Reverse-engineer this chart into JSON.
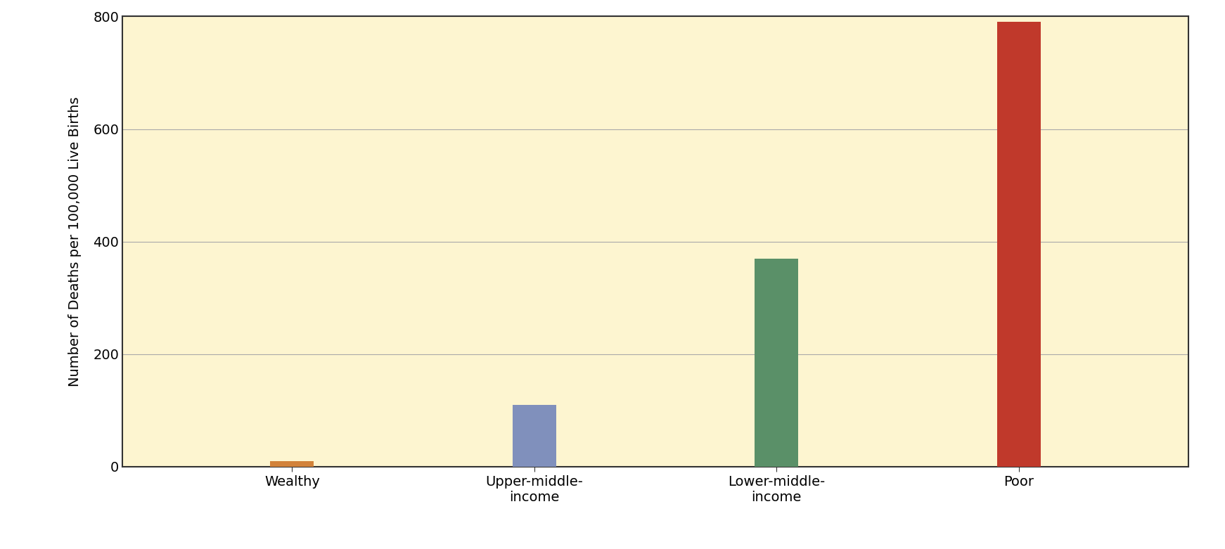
{
  "categories": [
    "Wealthy",
    "Upper-middle-\nincome",
    "Lower-middle-\nincome",
    "Poor"
  ],
  "values": [
    10,
    110,
    370,
    790
  ],
  "bar_colors": [
    "#d2823a",
    "#8090bc",
    "#5a9068",
    "#c0392b"
  ],
  "ylabel": "Number of Deaths per 100,000 Live Births",
  "ylim": [
    0,
    800
  ],
  "yticks": [
    0,
    200,
    400,
    600,
    800
  ],
  "background_color": "#fdf5d0",
  "outer_background": "#ffffff",
  "grid_color": "#aaaaaa",
  "bar_width": 0.18,
  "figsize": [
    17.42,
    7.81
  ],
  "dpi": 100,
  "spine_color": "#333333",
  "ylabel_fontsize": 14,
  "tick_fontsize": 14,
  "xlabel_fontsize": 14
}
